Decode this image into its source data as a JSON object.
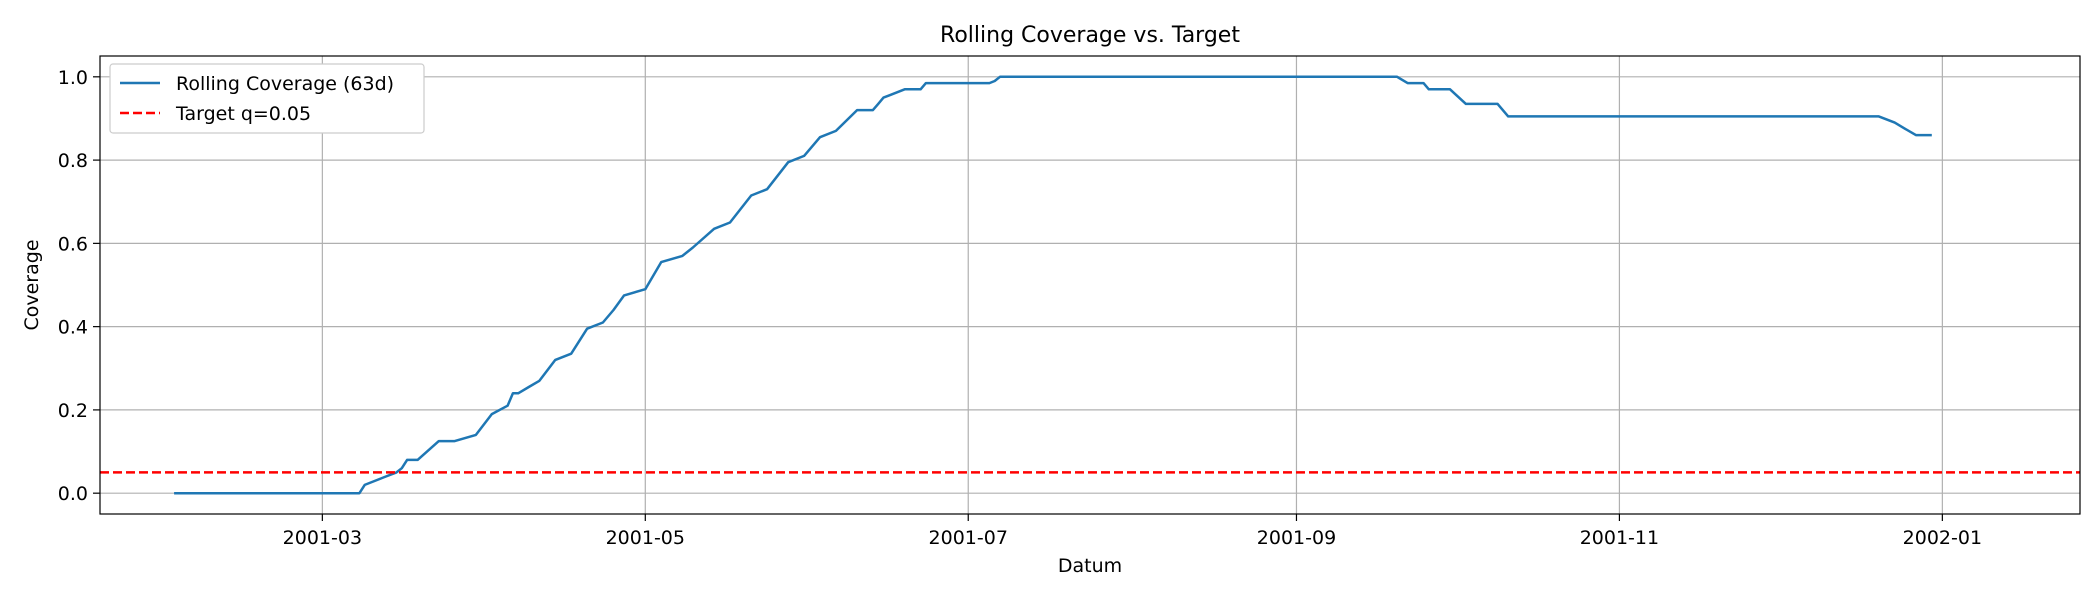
{
  "chart_data": {
    "type": "line",
    "title": "Rolling Coverage vs. Target",
    "xlabel": "Datum",
    "ylabel": "Coverage",
    "xlim": [
      "2001-01-18",
      "2002-01-27"
    ],
    "ylim": [
      -0.05,
      1.05
    ],
    "grid": true,
    "legend_position": "top-left",
    "x_ticks": [
      "2001-03-01",
      "2001-05-01",
      "2001-07-01",
      "2001-09-01",
      "2001-11-01",
      "2002-01-01"
    ],
    "x_tick_labels": [
      "2001-03",
      "2001-05",
      "2001-07",
      "2001-09",
      "2001-11",
      "2002-01"
    ],
    "y_ticks": [
      0.0,
      0.2,
      0.4,
      0.6,
      0.8,
      1.0
    ],
    "y_tick_labels": [
      "0.0",
      "0.2",
      "0.4",
      "0.6",
      "0.8",
      "1.0"
    ],
    "series": [
      {
        "name": "Rolling Coverage (63d)",
        "color": "#1f77b4",
        "style": "solid",
        "x": [
          "2001-02-01",
          "2001-03-08",
          "2001-03-09",
          "2001-03-13",
          "2001-03-15",
          "2001-03-16",
          "2001-03-17",
          "2001-03-19",
          "2001-03-23",
          "2001-03-26",
          "2001-03-30",
          "2001-04-02",
          "2001-04-05",
          "2001-04-06",
          "2001-04-07",
          "2001-04-09",
          "2001-04-11",
          "2001-04-14",
          "2001-04-17",
          "2001-04-20",
          "2001-04-23",
          "2001-04-25",
          "2001-04-27",
          "2001-05-01",
          "2001-05-04",
          "2001-05-08",
          "2001-05-10",
          "2001-05-14",
          "2001-05-17",
          "2001-05-21",
          "2001-05-24",
          "2001-05-28",
          "2001-05-31",
          "2001-06-03",
          "2001-06-06",
          "2001-06-10",
          "2001-06-13",
          "2001-06-14",
          "2001-06-15",
          "2001-06-16",
          "2001-06-19",
          "2001-06-22",
          "2001-06-23",
          "2001-07-03",
          "2001-07-05",
          "2001-07-06",
          "2001-07-07",
          "2001-09-20",
          "2001-09-22",
          "2001-09-25",
          "2001-09-26",
          "2001-09-30",
          "2001-10-03",
          "2001-10-09",
          "2001-10-11",
          "2001-12-20",
          "2001-12-23",
          "2001-12-25",
          "2001-12-27",
          "2001-12-30"
        ],
        "values": [
          0.0,
          0.0,
          0.02,
          0.04,
          0.05,
          0.06,
          0.08,
          0.08,
          0.125,
          0.125,
          0.14,
          0.19,
          0.21,
          0.24,
          0.24,
          0.255,
          0.27,
          0.32,
          0.335,
          0.395,
          0.41,
          0.44,
          0.475,
          0.49,
          0.555,
          0.57,
          0.59,
          0.635,
          0.65,
          0.715,
          0.73,
          0.795,
          0.81,
          0.855,
          0.87,
          0.92,
          0.92,
          0.935,
          0.95,
          0.955,
          0.97,
          0.97,
          0.985,
          0.985,
          0.985,
          0.99,
          1.0,
          1.0,
          0.985,
          0.985,
          0.97,
          0.97,
          0.935,
          0.935,
          0.905,
          0.905,
          0.89,
          0.875,
          0.86,
          0.86
        ]
      },
      {
        "name": "Target q=0.05",
        "color": "#ff0000",
        "style": "dashed",
        "x": [
          "2001-01-18",
          "2002-01-27"
        ],
        "values": [
          0.05,
          0.05
        ]
      }
    ]
  }
}
